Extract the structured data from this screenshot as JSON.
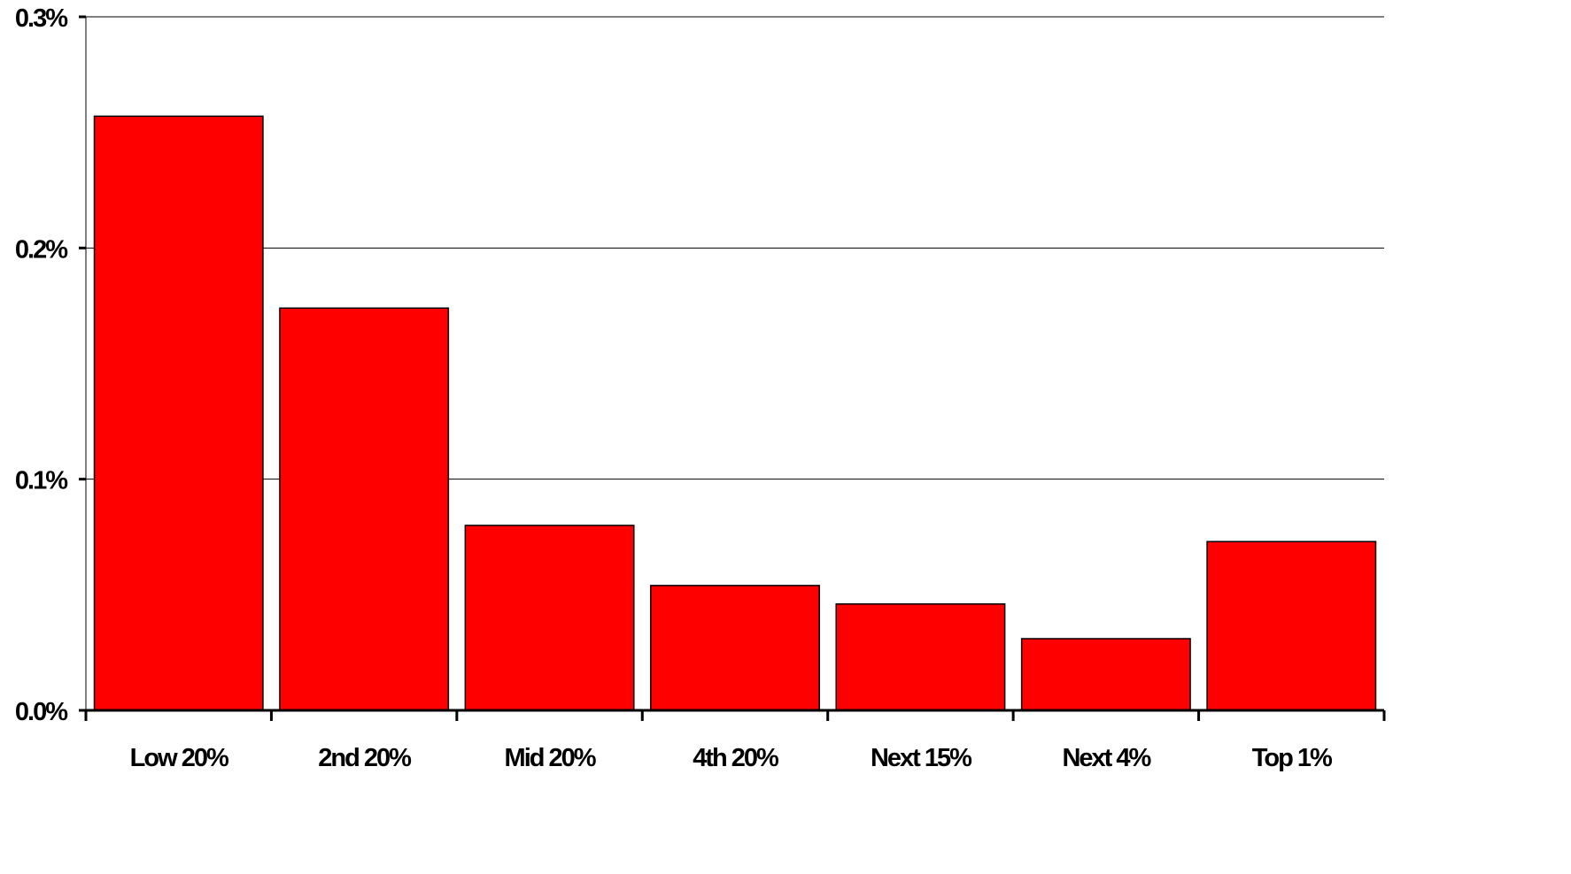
{
  "chart_data": {
    "type": "bar",
    "title": "",
    "xlabel": "",
    "ylabel": "",
    "categories": [
      "Low 20%",
      "2nd 20%",
      "Mid 20%",
      "4th 20%",
      "Next 15%",
      "Next 4%",
      "Top 1%"
    ],
    "values": [
      0.257,
      0.174,
      0.08,
      0.054,
      0.046,
      0.031,
      0.073
    ],
    "ylim": [
      0,
      0.3
    ],
    "yticks": [
      0,
      0.1,
      0.2,
      0.3
    ],
    "ytick_labels": [
      "0.0%",
      "0.1%",
      "0.2%",
      "0.3%"
    ],
    "grid": true,
    "legend": "none",
    "colors": {
      "bar": "#ff0000",
      "outline": "#000000",
      "background": "#ffffff"
    }
  }
}
